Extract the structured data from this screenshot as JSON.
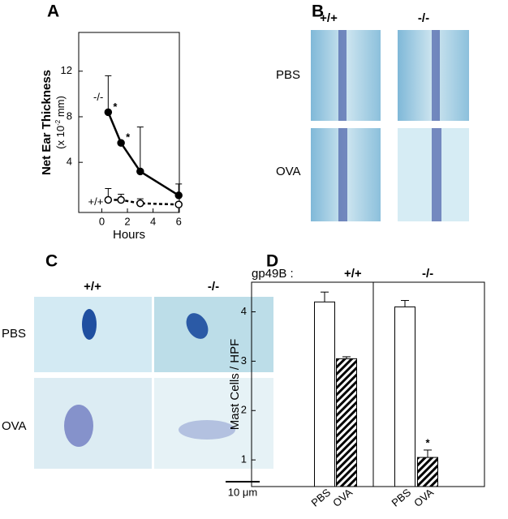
{
  "panels": {
    "a": "A",
    "b": "B",
    "c": "C",
    "d": "D"
  },
  "histology_b": {
    "columns": [
      "+/+",
      "-/-"
    ],
    "rows": [
      "PBS",
      "OVA"
    ]
  },
  "histology_c": {
    "columns": [
      "+/+",
      "-/-"
    ],
    "rows": [
      "PBS",
      "OVA"
    ],
    "scale_bar": "10 μm"
  },
  "chart_data": [
    {
      "type": "line",
      "xlabel": "Hours",
      "ylabel": "Net Ear Thickness",
      "ylabel_unit": [
        "(x 10",
        "-2",
        " mm)"
      ],
      "xlim": [
        -1.8,
        6.05
      ],
      "ylim": [
        -0.4,
        15.4
      ],
      "xticks": [
        0,
        2,
        4,
        6
      ],
      "yticks": [
        4,
        8,
        12
      ],
      "series": [
        {
          "name": "-/-",
          "color": "#000000",
          "marker_fill": "#000000",
          "dashed": false,
          "x": [
            0.5,
            1.5,
            3,
            6
          ],
          "values": [
            8.4,
            5.7,
            3.2,
            1.1
          ],
          "errors": [
            3.2,
            0,
            3.9,
            1.0
          ]
        },
        {
          "name": "+/+",
          "color": "#000000",
          "marker_fill": "#ffffff",
          "dashed": true,
          "x": [
            0.5,
            1.5,
            3,
            6
          ],
          "values": [
            0.7,
            0.7,
            0.4,
            0.3
          ],
          "errors": [
            1.0,
            0.5,
            0.4,
            0.1
          ]
        }
      ],
      "annotations": [
        "*",
        "*"
      ]
    },
    {
      "type": "bar",
      "ylabel": "Mast Cells / HPF",
      "group_title": "gp49B :",
      "groups": [
        "+/+",
        "-/-"
      ],
      "categories": [
        "PBS",
        "OVA",
        "PBS",
        "OVA"
      ],
      "values": [
        4.2,
        3.05,
        4.1,
        1.05
      ],
      "errors": [
        0.2,
        0.04,
        0.13,
        0.15
      ],
      "fills": [
        "plain",
        "hatched",
        "plain",
        "hatched"
      ],
      "ylim": [
        0.46,
        4.6
      ],
      "yticks": [
        1,
        2,
        3,
        4
      ],
      "annotations": [
        "*"
      ]
    }
  ]
}
